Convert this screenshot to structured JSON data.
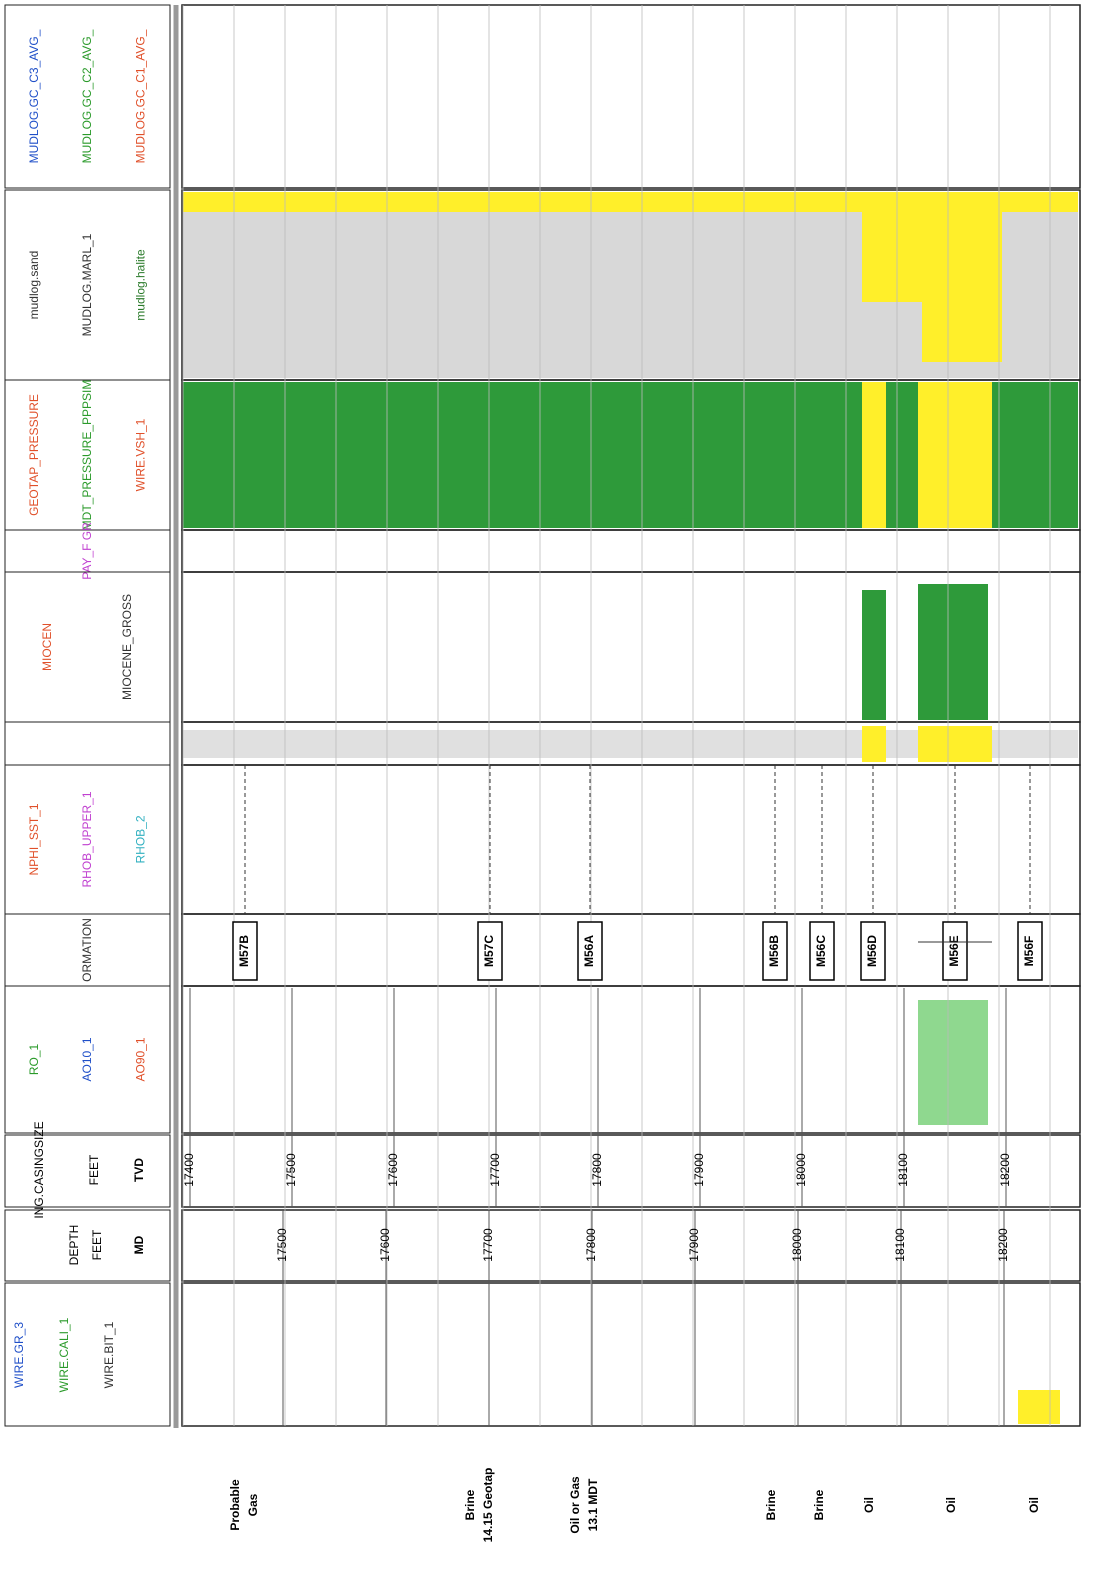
{
  "tracks": [
    {
      "labels": [
        {
          "text": "MUDLOG.GC_C3_AVG_",
          "color": "#1f4fc8"
        },
        {
          "text": "MUDLOG.GC_C2_AVG_",
          "color": "#2a9a2a"
        },
        {
          "text": "MUDLOG.GC_C1_AVG_",
          "color": "#e0502a"
        }
      ]
    },
    {
      "labels": [
        {
          "text": "mudlog.sand",
          "color": "#333333"
        },
        {
          "text": "MUDLOG.MARL_1",
          "color": "#333333"
        },
        {
          "text": "mudlog.halite",
          "color": "#2a7a2a"
        }
      ]
    },
    {
      "labels": [
        {
          "text": "GEOTAP_PRESSURE",
          "color": "#e0502a"
        },
        {
          "text": "MDT_PRESSURE_PPPSIM",
          "color": "#2a9a2a"
        },
        {
          "text": "WIRE.VSH_1",
          "color": "#e0502a"
        }
      ]
    },
    {
      "labels": [
        {
          "text": "PAY_F GR",
          "color": "#c040d0"
        }
      ]
    },
    {
      "labels": [
        {
          "text": "MIOCEN",
          "color": "#e0502a"
        },
        {
          "text": "MIOCENE_GROSS",
          "color": "#333333"
        }
      ]
    },
    {
      "labels": []
    },
    {
      "labels": [
        {
          "text": "NPHI_SST_1",
          "color": "#e0502a"
        },
        {
          "text": "RHOB_UPPER_1",
          "color": "#c040d0"
        },
        {
          "text": "RHOB_2",
          "color": "#30b0c0"
        }
      ]
    },
    {
      "labels": [
        {
          "text": "ORMATION",
          "color": "#333333"
        }
      ]
    },
    {
      "labels": [
        {
          "text": "RO_1",
          "color": "#2a9a2a"
        },
        {
          "text": "AO10_1",
          "color": "#1f4fc8"
        },
        {
          "text": "AO90_1",
          "color": "#e0502a"
        }
      ]
    }
  ],
  "tvd": {
    "caption": "ING.CASINGSIZE",
    "unit": "FEET",
    "code": "TVD",
    "ticks": [
      17400,
      17500,
      17600,
      17700,
      17800,
      17900,
      18000,
      18100,
      18200
    ]
  },
  "md": {
    "caption": "DEPTH",
    "unit": "FEET",
    "code": "MD",
    "ticks": [
      17500,
      17600,
      17700,
      17800,
      17900,
      18000,
      18100,
      18200
    ]
  },
  "gr_track": {
    "labels": [
      {
        "text": "WIRE.GR_3",
        "color": "#1f4fc8"
      },
      {
        "text": "WIRE.CALI_1",
        "color": "#2a9a2a"
      },
      {
        "text": "WIRE.BIT_1",
        "color": "#333333"
      }
    ]
  },
  "tops": [
    "M57B",
    "M57C",
    "M56A",
    "M56B",
    "M56C",
    "M56D",
    "M56E",
    "M56F"
  ],
  "annotations": [
    [
      "Probable",
      "Gas"
    ],
    [
      "Brine",
      "14.15 Geotap"
    ],
    [
      "Oil or Gas",
      "13.1 MDT"
    ],
    [
      "Brine"
    ],
    [
      "Brine"
    ],
    [
      "Oil"
    ],
    [
      "Oil"
    ],
    [
      "Oil"
    ]
  ]
}
